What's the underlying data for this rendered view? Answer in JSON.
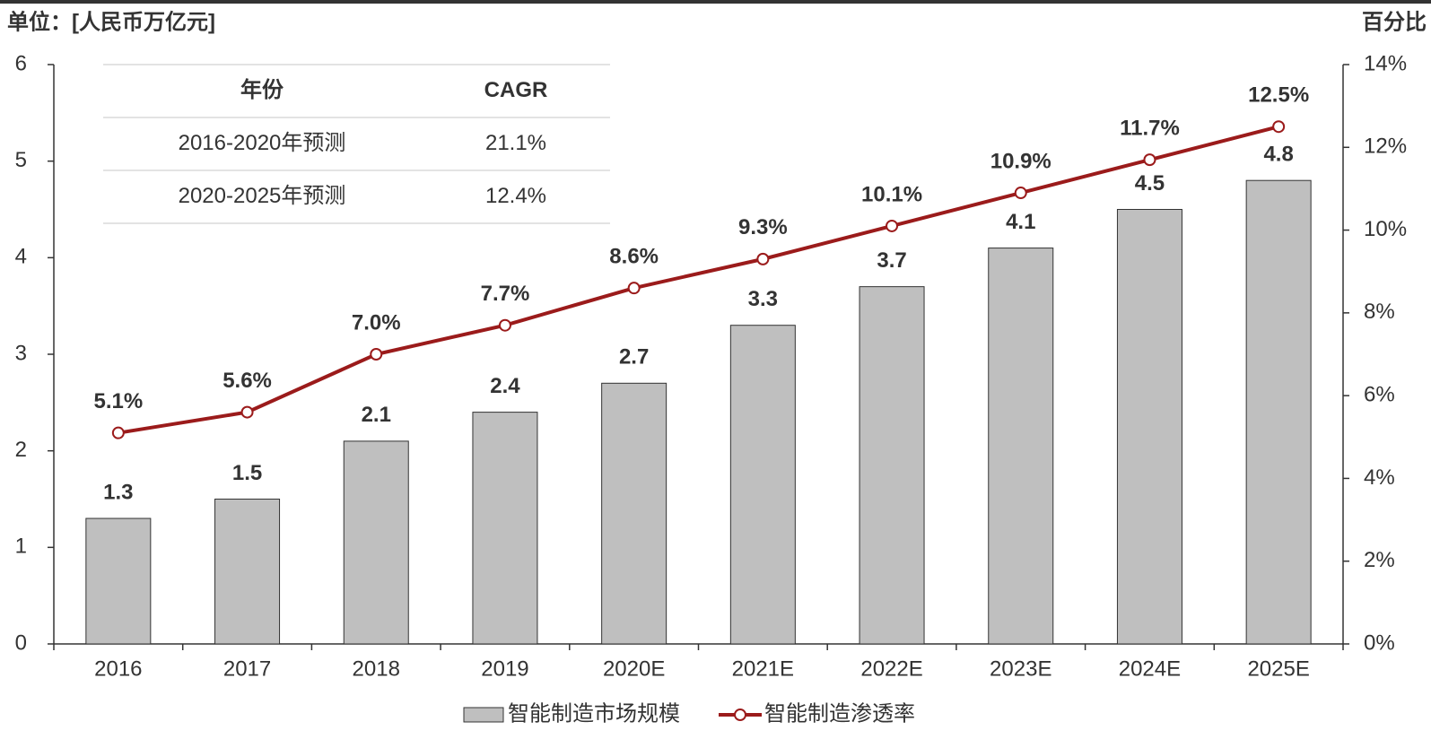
{
  "chart_data": {
    "type": "bar_line",
    "y_label": "单位：[人民币万亿元]",
    "y2_label": "百分比",
    "categories": [
      "2016",
      "2017",
      "2018",
      "2019",
      "2020E",
      "2021E",
      "2022E",
      "2023E",
      "2024E",
      "2025E"
    ],
    "series": [
      {
        "name": "智能制造市场规模",
        "type": "bar",
        "color": "#bfbfbf",
        "values": [
          1.3,
          1.5,
          2.1,
          2.4,
          2.7,
          3.3,
          3.7,
          4.1,
          4.5,
          4.8
        ]
      },
      {
        "name": "智能制造渗透率",
        "type": "line",
        "axis": "y2",
        "color": "#9b1b1b",
        "values": [
          5.1,
          5.6,
          7.0,
          7.7,
          8.6,
          9.3,
          10.1,
          10.9,
          11.7,
          12.5
        ],
        "value_labels": [
          "5.1%",
          "5.6%",
          "7.0%",
          "7.7%",
          "8.6%",
          "9.3%",
          "10.1%",
          "10.9%",
          "11.7%",
          "12.5%"
        ]
      }
    ],
    "ylim": [
      0,
      6
    ],
    "yticks": [
      0,
      1,
      2,
      3,
      4,
      5,
      6
    ],
    "y2lim": [
      0,
      14
    ],
    "y2ticks": [
      {
        "value": 0,
        "label": "0%"
      },
      {
        "value": 2,
        "label": "2%"
      },
      {
        "value": 4,
        "label": "4%"
      },
      {
        "value": 6,
        "label": "6%"
      },
      {
        "value": 8,
        "label": "8%"
      },
      {
        "value": 10,
        "label": "10%"
      },
      {
        "value": 12,
        "label": "12%"
      },
      {
        "value": 14,
        "label": "14%"
      }
    ],
    "table": {
      "header": [
        "年份",
        "CAGR"
      ],
      "rows": [
        [
          "2016-2020年预测",
          "21.1%"
        ],
        [
          "2020-2025年预测",
          "12.4%"
        ]
      ]
    }
  }
}
